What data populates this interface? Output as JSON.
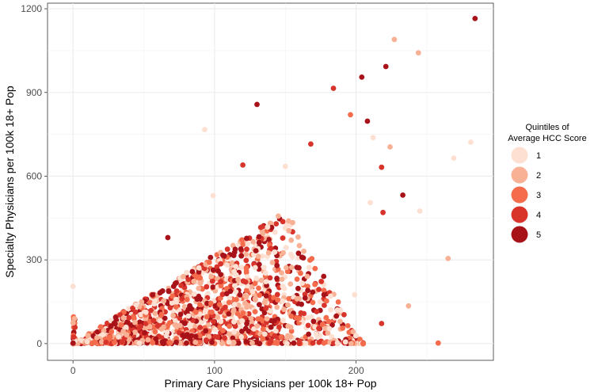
{
  "chart_data": {
    "type": "scatter",
    "xlabel": "Primary Care Physicians per 100k 18+ Pop",
    "ylabel": "Specialty Physicians per 100k 18+ Pop",
    "xlim": [
      -18,
      297
    ],
    "ylim": [
      -60,
      1220
    ],
    "x_ticks": [
      0,
      100,
      200
    ],
    "y_ticks": [
      0,
      300,
      600,
      900,
      1200
    ],
    "grid": true,
    "legend_title": [
      "Quintiles of",
      "Average HCC Score"
    ],
    "legend_placement": "right",
    "legend": [
      {
        "label": "1",
        "color": "#fde0d2"
      },
      {
        "label": "2",
        "color": "#f9b196"
      },
      {
        "label": "3",
        "color": "#f46c4c"
      },
      {
        "label": "4",
        "color": "#d8342b"
      },
      {
        "label": "5",
        "color": "#a81219"
      }
    ],
    "outliers": [
      {
        "x": 284,
        "y": 1165,
        "q": 5
      },
      {
        "x": 227,
        "y": 1090,
        "q": 2
      },
      {
        "x": 244,
        "y": 1042,
        "q": 2
      },
      {
        "x": 221,
        "y": 993,
        "q": 5
      },
      {
        "x": 204,
        "y": 955,
        "q": 5
      },
      {
        "x": 184,
        "y": 915,
        "q": 4
      },
      {
        "x": 130,
        "y": 857,
        "q": 5
      },
      {
        "x": 196,
        "y": 820,
        "q": 3
      },
      {
        "x": 208,
        "y": 797,
        "q": 5
      },
      {
        "x": 93,
        "y": 767,
        "q": 1
      },
      {
        "x": 212,
        "y": 738,
        "q": 1
      },
      {
        "x": 281,
        "y": 722,
        "q": 1
      },
      {
        "x": 224,
        "y": 705,
        "q": 2
      },
      {
        "x": 168,
        "y": 715,
        "q": 4
      },
      {
        "x": 269,
        "y": 665,
        "q": 1
      },
      {
        "x": 218,
        "y": 632,
        "q": 4
      },
      {
        "x": 233,
        "y": 532,
        "q": 5
      },
      {
        "x": 210,
        "y": 505,
        "q": 1
      },
      {
        "x": 219,
        "y": 470,
        "q": 4
      },
      {
        "x": 245,
        "y": 475,
        "q": 1
      },
      {
        "x": 265,
        "y": 305,
        "q": 2
      },
      {
        "x": 237,
        "y": 135,
        "q": 2
      },
      {
        "x": 258,
        "y": 2,
        "q": 3
      },
      {
        "x": 218,
        "y": 72,
        "q": 4
      },
      {
        "x": 199,
        "y": 175,
        "q": 1
      },
      {
        "x": 120,
        "y": 640,
        "q": 4
      },
      {
        "x": 67,
        "y": 380,
        "q": 5
      },
      {
        "x": 99,
        "y": 530,
        "q": 1
      },
      {
        "x": 0,
        "y": 205,
        "q": 1
      },
      {
        "x": 150,
        "y": 635,
        "q": 1
      }
    ]
  }
}
